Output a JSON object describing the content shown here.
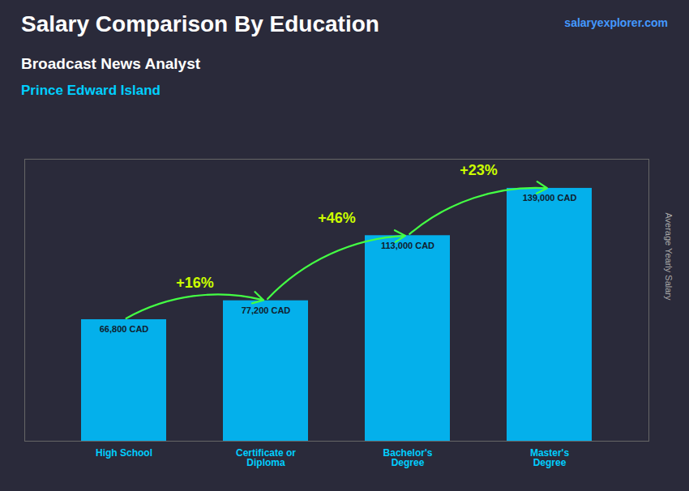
{
  "chart_data": {
    "type": "bar",
    "title": "Salary Comparison By Education",
    "subtitle": [
      "Broadcast News Analyst",
      "Prince Edward Island"
    ],
    "ylabel": "Average Yearly Salary",
    "categories": [
      "High School",
      "Certificate or\nDiploma",
      "Bachelor's\nDegree",
      "Master's\nDegree"
    ],
    "values": [
      66800,
      77200,
      113000,
      139000
    ],
    "value_labels": [
      "66,800 CAD",
      "77,200 CAD",
      "113,000 CAD",
      "139,000 CAD"
    ],
    "color": "#00BFFF",
    "ylim": [
      0,
      155000
    ],
    "data_labels": true,
    "tick_labels": "x",
    "grid": false,
    "annotations": [
      {
        "text": "salaryexplorer.com"
      },
      {
        "text": "+16%",
        "from": "High School",
        "to": "Certificate or\nDiploma"
      },
      {
        "text": "+46%",
        "from": "Certificate or\nDiploma",
        "to": "Bachelor's\nDegree"
      },
      {
        "text": "+23%",
        "from": "Bachelor's\nDegree",
        "to": "Master's\nDegree"
      }
    ]
  }
}
